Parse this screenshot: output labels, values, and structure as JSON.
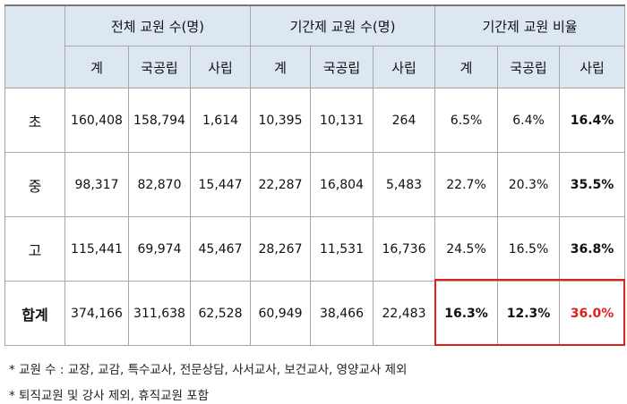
{
  "header": {
    "groups": [
      "전체 교원 수(명)",
      "기간제 교원 수(명)",
      "기간제 교원 비율"
    ],
    "sub": [
      "계",
      "국공립",
      "사립",
      "계",
      "국공립",
      "사립",
      "계",
      "국공립",
      "사립"
    ]
  },
  "rows": [
    {
      "label": "초",
      "cells": [
        "160,408",
        "158,794",
        "1,614",
        "10,395",
        "10,131",
        "264",
        "6.5%",
        "6.4%",
        "16.4%"
      ]
    },
    {
      "label": "중",
      "cells": [
        "98,317",
        "82,870",
        "15,447",
        "22,287",
        "16,804",
        "5,483",
        "22.7%",
        "20.3%",
        "35.5%"
      ]
    },
    {
      "label": "고",
      "cells": [
        "115,441",
        "69,974",
        "45,467",
        "28,267",
        "11,531",
        "16,736",
        "24.5%",
        "16.5%",
        "36.8%"
      ]
    },
    {
      "label": "합계",
      "cells": [
        "374,166",
        "311,638",
        "62,528",
        "60,949",
        "38,466",
        "22,483",
        "16.3%",
        "12.3%",
        "36.0%"
      ]
    }
  ],
  "notes": [
    "* 교원 수 : 교장, 교감, 특수교사, 전문상담, 사서교사, 보건교사, 영양교사 제외",
    "* 퇴직교원 및 강사 제외, 휴직교원 포함"
  ]
}
